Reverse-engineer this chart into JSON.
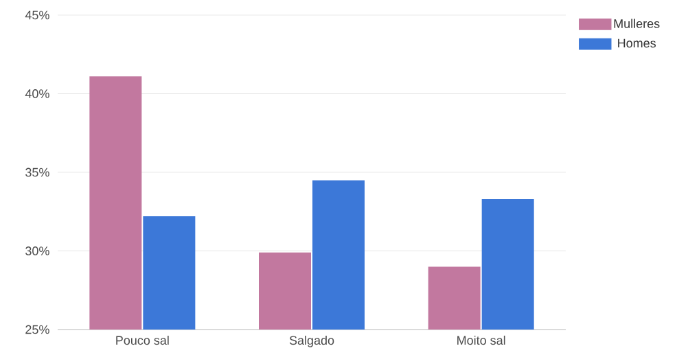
{
  "chart_data": {
    "type": "bar",
    "categories": [
      "Pouco sal",
      "Salgado",
      "Moito sal"
    ],
    "series": [
      {
        "name": "Mulleres",
        "color": "#c2789f",
        "values": [
          41.1,
          29.9,
          29.0
        ]
      },
      {
        "name": "Homes",
        "color": "#3c78d8",
        "values": [
          32.2,
          34.5,
          33.3
        ]
      }
    ],
    "ylim": [
      25,
      45
    ],
    "yticks": [
      {
        "value": 25,
        "label": "25%"
      },
      {
        "value": 30,
        "label": "30%"
      },
      {
        "value": 35,
        "label": "35%"
      },
      {
        "value": 40,
        "label": "40%"
      },
      {
        "value": 45,
        "label": "45%"
      }
    ],
    "grid": "y",
    "legend": "top right"
  }
}
